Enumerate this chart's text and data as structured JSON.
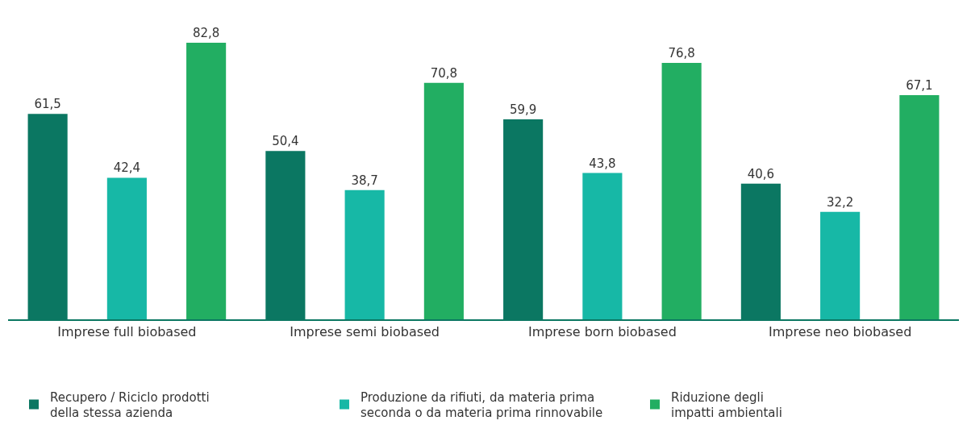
{
  "chart_data": {
    "type": "bar",
    "categories": [
      "Imprese full biobased",
      "Imprese semi biobased",
      "Imprese born biobased",
      "Imprese neo biobased"
    ],
    "series": [
      {
        "name": "Recupero / Riciclo prodotti\ndella stessa azienda",
        "color": "#0b7762",
        "values": [
          61.5,
          50.4,
          59.9,
          40.6
        ],
        "value_labels": [
          "61,5",
          "50,4",
          "59,9",
          "40,6"
        ]
      },
      {
        "name": "Produzione da rifiuti, da materia prima\nseconda o da materia prima rinnovabile",
        "color": "#17b8a6",
        "values": [
          42.4,
          38.7,
          43.8,
          32.2
        ],
        "value_labels": [
          "42,4",
          "38,7",
          "43,8",
          "32,2"
        ]
      },
      {
        "name": "Riduzione degli\nimpatti ambientali",
        "color": "#22ae62",
        "values": [
          82.8,
          70.8,
          76.8,
          67.1
        ],
        "value_labels": [
          "82,8",
          "70,8",
          "76,8",
          "67,1"
        ]
      }
    ],
    "legend": "bottom"
  }
}
